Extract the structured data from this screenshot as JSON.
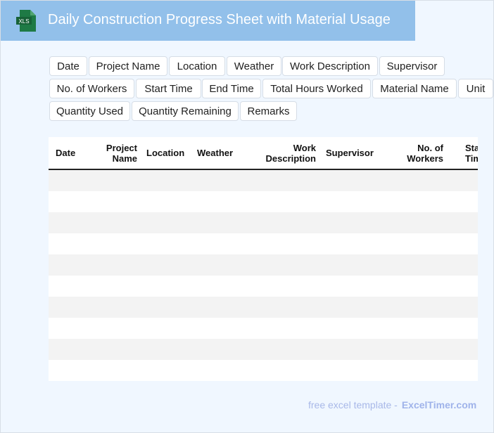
{
  "header": {
    "title": "Daily Construction Progress Sheet with Material Usage",
    "logo_text": "XLS",
    "logo_color": "#1e7a45"
  },
  "chips": [
    "Date",
    "Project Name",
    "Location",
    "Weather",
    "Work Description",
    "Supervisor",
    "No. of Workers",
    "Start Time",
    "End Time",
    "Total Hours Worked",
    "Material Name",
    "Unit",
    "Quantity Used",
    "Quantity Remaining",
    "Remarks"
  ],
  "table": {
    "columns": [
      "Date",
      "Project Name",
      "Location",
      "Weather",
      "Work Description",
      "Supervisor",
      "No. of Workers",
      "Start Time"
    ],
    "row_count": 10
  },
  "footer": {
    "text": "free excel template -",
    "brand": "ExcelTimer.com"
  }
}
